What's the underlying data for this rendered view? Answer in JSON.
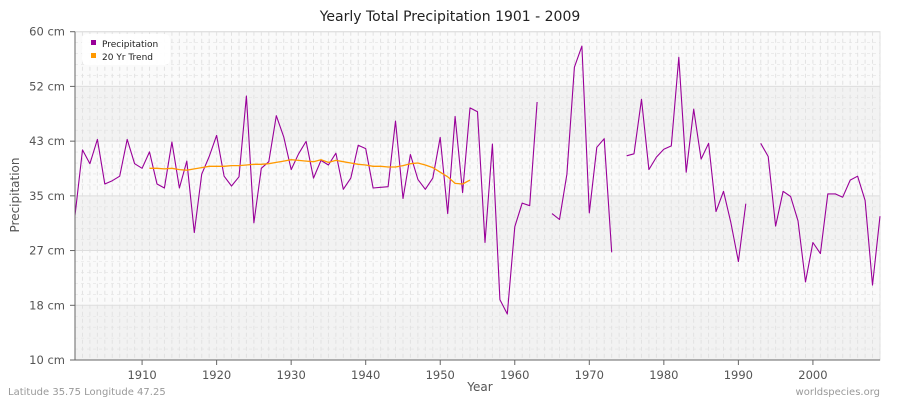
{
  "chart_data": {
    "type": "line",
    "title": "Yearly Total Precipitation 1901 - 2009",
    "xlabel": "Year",
    "ylabel": "Precipitation",
    "xlim": [
      1901,
      2009
    ],
    "ylim": [
      10,
      60
    ],
    "y_ticks": [
      {
        "value": 60,
        "label": "60 cm"
      },
      {
        "value": 51.67,
        "label": "52 cm"
      },
      {
        "value": 43.33,
        "label": "43 cm"
      },
      {
        "value": 35,
        "label": "35 cm"
      },
      {
        "value": 26.67,
        "label": "27 cm"
      },
      {
        "value": 18.33,
        "label": "18 cm"
      },
      {
        "value": 10,
        "label": "10 cm"
      }
    ],
    "x_ticks": [
      1910,
      1920,
      1930,
      1940,
      1950,
      1960,
      1970,
      1980,
      1990,
      2000
    ],
    "grid": true,
    "legend_position": "top-left",
    "series": [
      {
        "name": "Precipitation",
        "color": "#990099",
        "x": [
          1901,
          1902,
          1903,
          1904,
          1905,
          1906,
          1907,
          1908,
          1909,
          1910,
          1911,
          1912,
          1913,
          1914,
          1915,
          1916,
          1917,
          1918,
          1919,
          1920,
          1921,
          1922,
          1923,
          1924,
          1925,
          1926,
          1927,
          1928,
          1929,
          1930,
          1931,
          1932,
          1933,
          1934,
          1935,
          1936,
          1937,
          1938,
          1939,
          1940,
          1941,
          1942,
          1943,
          1944,
          1945,
          1946,
          1947,
          1948,
          1949,
          1950,
          1951,
          1952,
          1953,
          1954,
          1955,
          1956,
          1957,
          1958,
          1959,
          1960,
          1961,
          1962,
          1963,
          1964,
          1965,
          1966,
          1967,
          1968,
          1969,
          1970,
          1971,
          1972,
          1973,
          1974,
          1975,
          1976,
          1977,
          1978,
          1979,
          1980,
          1981,
          1982,
          1983,
          1984,
          1985,
          1986,
          1987,
          1988,
          1989,
          1990,
          1991,
          1992,
          1993,
          1994,
          1995,
          1996,
          1997,
          1998,
          1999,
          2000,
          2001,
          2002,
          2003,
          2004,
          2005,
          2006,
          2007,
          2008,
          2009
        ],
        "values": [
          32.0,
          42.0,
          39.9,
          43.6,
          36.8,
          37.3,
          38.0,
          43.6,
          39.9,
          39.2,
          41.7,
          36.8,
          36.2,
          43.2,
          36.2,
          40.3,
          29.4,
          38.3,
          41.0,
          44.2,
          38.0,
          36.5,
          37.9,
          50.2,
          30.9,
          39.2,
          40.2,
          47.2,
          44.0,
          39.0,
          41.4,
          43.3,
          37.7,
          40.4,
          39.7,
          41.5,
          36.0,
          37.7,
          42.7,
          42.2,
          36.2,
          36.3,
          36.4,
          46.4,
          34.6,
          41.3,
          37.5,
          36.0,
          37.7,
          43.9,
          32.3,
          47.1,
          35.5,
          48.4,
          47.8,
          27.9,
          42.9,
          19.2,
          17.0,
          30.3,
          33.9,
          33.5,
          49.3,
          null,
          32.3,
          31.4,
          38.3,
          54.6,
          57.8,
          32.4,
          42.4,
          43.7,
          26.4,
          null,
          41.1,
          41.4,
          49.7,
          39.0,
          40.9,
          42.1,
          42.6,
          56.1,
          38.6,
          48.2,
          40.6,
          43.0,
          32.6,
          35.7,
          30.9,
          25.0,
          33.8,
          null,
          43.0,
          41.0,
          30.4,
          35.7,
          34.9,
          31.2,
          21.9,
          27.9,
          26.2,
          35.3,
          35.3,
          34.8,
          37.4,
          38.0,
          34.3,
          21.4,
          31.9
        ]
      },
      {
        "name": "20 Yr Trend",
        "color": "#ff9900",
        "x": [
          1911,
          1912,
          1913,
          1914,
          1915,
          1916,
          1917,
          1918,
          1919,
          1920,
          1921,
          1922,
          1923,
          1924,
          1925,
          1926,
          1927,
          1928,
          1929,
          1930,
          1931,
          1932,
          1933,
          1934,
          1935,
          1936,
          1937,
          1938,
          1939,
          1940,
          1941,
          1942,
          1943,
          1944,
          1945,
          1946,
          1947,
          1948,
          1949,
          1950,
          1951,
          1952,
          1953,
          1954
        ],
        "values": [
          39.2,
          39.2,
          39.1,
          39.2,
          39.0,
          38.9,
          39.1,
          39.3,
          39.5,
          39.5,
          39.5,
          39.6,
          39.6,
          39.7,
          39.8,
          39.8,
          39.9,
          40.1,
          40.3,
          40.5,
          40.4,
          40.3,
          40.2,
          40.5,
          40.1,
          40.4,
          40.2,
          40.0,
          39.8,
          39.7,
          39.5,
          39.5,
          39.4,
          39.4,
          39.6,
          39.9,
          40.0,
          39.7,
          39.3,
          38.6,
          37.9,
          36.9,
          36.8,
          37.4
        ]
      }
    ]
  },
  "footer": {
    "location": "Latitude 35.75 Longitude 47.25",
    "source": "worldspecies.org"
  },
  "style": {
    "band_light": "#fafafa",
    "band_dark": "#f2f2f2",
    "grid_color": "#e2e2e2",
    "axis_color": "#666666"
  }
}
